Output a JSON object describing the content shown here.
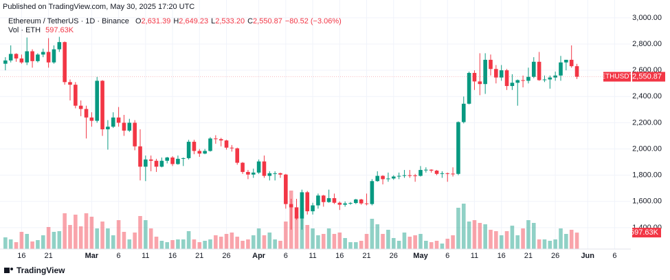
{
  "chart_data": {
    "type": "candlestick",
    "published": "Published on TradingView.com, May 30, 2025 17:20 UTC",
    "title": "Ethereum / TetherUS · 1D · Binance",
    "ohlc_legend": [
      {
        "label": "O",
        "value": "2,631.39"
      },
      {
        "label": "H",
        "value": "2,649.23"
      },
      {
        "label": "L",
        "value": "2,533.20"
      },
      {
        "label": "C",
        "value": "2,550.87"
      }
    ],
    "change": "−80.52 (−3.06%)",
    "symbol": "ETHUSDT",
    "last_price_label": "2,550.87",
    "footer": "TradingView",
    "up_color": "#089981",
    "down_color": "#f23645",
    "grid": true,
    "x": [
      "2025-02-13",
      "2025-02-14",
      "2025-02-15",
      "2025-02-16",
      "2025-02-17",
      "2025-02-18",
      "2025-02-19",
      "2025-02-20",
      "2025-02-21",
      "2025-02-22",
      "2025-02-23",
      "2025-02-24",
      "2025-02-25",
      "2025-02-26",
      "2025-02-27",
      "2025-02-28",
      "2025-03-01",
      "2025-03-02",
      "2025-03-03",
      "2025-03-04",
      "2025-03-05",
      "2025-03-06",
      "2025-03-07",
      "2025-03-08",
      "2025-03-09",
      "2025-03-10",
      "2025-03-11",
      "2025-03-12",
      "2025-03-13",
      "2025-03-14",
      "2025-03-15",
      "2025-03-16",
      "2025-03-17",
      "2025-03-18",
      "2025-03-19",
      "2025-03-20",
      "2025-03-21",
      "2025-03-22",
      "2025-03-23",
      "2025-03-24",
      "2025-03-25",
      "2025-03-26",
      "2025-03-27",
      "2025-03-28",
      "2025-03-29",
      "2025-03-30",
      "2025-03-31",
      "2025-04-01",
      "2025-04-02",
      "2025-04-03",
      "2025-04-04",
      "2025-04-05",
      "2025-04-06",
      "2025-04-07",
      "2025-04-08",
      "2025-04-09",
      "2025-04-10",
      "2025-04-11",
      "2025-04-12",
      "2025-04-13",
      "2025-04-14",
      "2025-04-15",
      "2025-04-16",
      "2025-04-17",
      "2025-04-18",
      "2025-04-19",
      "2025-04-20",
      "2025-04-21",
      "2025-04-22",
      "2025-04-23",
      "2025-04-24",
      "2025-04-25",
      "2025-04-26",
      "2025-04-27",
      "2025-04-28",
      "2025-04-29",
      "2025-04-30",
      "2025-05-01",
      "2025-05-02",
      "2025-05-03",
      "2025-05-04",
      "2025-05-05",
      "2025-05-06",
      "2025-05-07",
      "2025-05-08",
      "2025-05-09",
      "2025-05-10",
      "2025-05-11",
      "2025-05-12",
      "2025-05-13",
      "2025-05-14",
      "2025-05-15",
      "2025-05-16",
      "2025-05-17",
      "2025-05-18",
      "2025-05-19",
      "2025-05-20",
      "2025-05-21",
      "2025-05-22",
      "2025-05-23",
      "2025-05-24",
      "2025-05-25",
      "2025-05-26",
      "2025-05-27",
      "2025-05-28",
      "2025-05-29",
      "2025-05-30"
    ],
    "open": [
      2650,
      2675,
      2725,
      2690,
      2660,
      2745,
      2670,
      2720,
      2740,
      2660,
      2760,
      2815,
      2510,
      2490,
      2330,
      2305,
      2240,
      2215,
      2520,
      2150,
      2170,
      2240,
      2200,
      2140,
      2200,
      2020,
      1865,
      1920,
      1910,
      1865,
      1910,
      1935,
      1885,
      1925,
      1930,
      2055,
      1985,
      1965,
      1985,
      2080,
      2075,
      2065,
      2010,
      2005,
      1895,
      1825,
      1805,
      1820,
      1905,
      1795,
      1815,
      1815,
      1805,
      1580,
      1555,
      1470,
      1670,
      1525,
      1570,
      1645,
      1595,
      1625,
      1590,
      1575,
      1585,
      1588,
      1615,
      1585,
      1580,
      1755,
      1795,
      1770,
      1775,
      1790,
      1795,
      1800,
      1798,
      1795,
      1840,
      1842,
      1835,
      1810,
      1815,
      1812,
      1810,
      2205,
      2345,
      2580,
      2515,
      2495,
      2680,
      2610,
      2545,
      2600,
      2480,
      2505,
      2525,
      2520,
      2550,
      2665,
      2525,
      2530,
      2545,
      2560,
      2660,
      2680,
      2631.39
    ],
    "high": [
      2700,
      2790,
      2730,
      2720,
      2850,
      2760,
      2730,
      2765,
      2845,
      2790,
      2855,
      2820,
      2530,
      2510,
      2370,
      2330,
      2280,
      2550,
      2525,
      2220,
      2280,
      2320,
      2260,
      2230,
      2220,
      2150,
      1950,
      1950,
      1925,
      1935,
      1940,
      1945,
      1950,
      1935,
      2070,
      2070,
      2000,
      2000,
      2090,
      2105,
      2085,
      2070,
      2030,
      2010,
      1900,
      1840,
      1850,
      1920,
      1950,
      1830,
      1830,
      1820,
      1810,
      1620,
      1620,
      1690,
      1680,
      1590,
      1660,
      1650,
      1690,
      1660,
      1600,
      1600,
      1595,
      1620,
      1620,
      1660,
      1770,
      1830,
      1800,
      1820,
      1800,
      1820,
      1840,
      1840,
      1810,
      1870,
      1860,
      1845,
      1840,
      1830,
      1820,
      1860,
      2210,
      2400,
      2590,
      2600,
      2730,
      2730,
      2720,
      2640,
      2640,
      2610,
      2570,
      2530,
      2560,
      2620,
      2700,
      2740,
      2560,
      2560,
      2590,
      2710,
      2680,
      2790,
      2649.23
    ],
    "low": [
      2600,
      2660,
      2665,
      2650,
      2640,
      2620,
      2660,
      2700,
      2620,
      2650,
      2740,
      2490,
      2370,
      2310,
      2250,
      2080,
      2170,
      2200,
      2100,
      1995,
      2160,
      2170,
      2100,
      2130,
      1990,
      1760,
      1755,
      1830,
      1825,
      1860,
      1890,
      1870,
      1880,
      1870,
      1920,
      1960,
      1940,
      1960,
      1980,
      2040,
      2020,
      1995,
      1980,
      1880,
      1810,
      1770,
      1780,
      1810,
      1780,
      1760,
      1760,
      1780,
      1545,
      1385,
      1460,
      1385,
      1500,
      1500,
      1545,
      1560,
      1590,
      1580,
      1535,
      1560,
      1575,
      1580,
      1575,
      1570,
      1570,
      1750,
      1730,
      1750,
      1765,
      1770,
      1780,
      1780,
      1750,
      1790,
      1820,
      1820,
      1800,
      1780,
      1750,
      1790,
      1800,
      2195,
      2340,
      2450,
      2410,
      2420,
      2560,
      2500,
      2520,
      2450,
      2450,
      2330,
      2470,
      2500,
      2540,
      2520,
      2510,
      2460,
      2520,
      2520,
      2600,
      2620,
      2533.2
    ],
    "close": [
      2675,
      2725,
      2690,
      2660,
      2745,
      2670,
      2720,
      2740,
      2660,
      2760,
      2815,
      2510,
      2490,
      2330,
      2305,
      2240,
      2215,
      2520,
      2150,
      2170,
      2240,
      2200,
      2140,
      2200,
      2020,
      1865,
      1920,
      1910,
      1865,
      1910,
      1935,
      1885,
      1925,
      1930,
      2055,
      1985,
      1965,
      1985,
      2080,
      2075,
      2065,
      2010,
      2005,
      1895,
      1825,
      1805,
      1820,
      1905,
      1795,
      1815,
      1815,
      1805,
      1580,
      1555,
      1470,
      1670,
      1525,
      1570,
      1645,
      1595,
      1625,
      1590,
      1575,
      1585,
      1588,
      1615,
      1585,
      1580,
      1755,
      1795,
      1770,
      1775,
      1790,
      1795,
      1800,
      1798,
      1795,
      1840,
      1842,
      1835,
      1810,
      1815,
      1812,
      1810,
      2205,
      2345,
      2580,
      2515,
      2495,
      2680,
      2610,
      2545,
      2600,
      2480,
      2505,
      2525,
      2520,
      2550,
      2665,
      2525,
      2530,
      2545,
      2560,
      2660,
      2680,
      2631.39,
      2550.87
    ],
    "volume": {
      "name": "Vol · ETH",
      "last_label": "597.63K",
      "values": [
        425000,
        350000,
        250000,
        625000,
        550000,
        275000,
        325000,
        500000,
        800000,
        625000,
        650000,
        1300000,
        875000,
        1250000,
        825000,
        1300000,
        1175000,
        750000,
        1000000,
        750000,
        500000,
        1050000,
        625000,
        350000,
        600000,
        1200000,
        1050000,
        750000,
        450000,
        300000,
        250000,
        325000,
        350000,
        350000,
        650000,
        350000,
        250000,
        300000,
        350000,
        500000,
        450000,
        550000,
        600000,
        450000,
        300000,
        350000,
        500000,
        750000,
        500000,
        600000,
        350000,
        300000,
        1000000,
        2125000,
        1200000,
        1500000,
        875000,
        750000,
        500000,
        550000,
        750000,
        550000,
        600000,
        400000,
        250000,
        250000,
        300000,
        550000,
        1100000,
        900000,
        550000,
        700000,
        400000,
        300000,
        600000,
        450000,
        500000,
        550000,
        300000,
        250000,
        300000,
        200000,
        375000,
        500000,
        1500000,
        1650000,
        1000000,
        1050000,
        950000,
        900000,
        700000,
        650000,
        500000,
        650000,
        850000,
        500000,
        750000,
        1050000,
        950000,
        350000,
        350000,
        300000,
        350000,
        750000,
        550000,
        700000,
        597630
      ]
    },
    "xlim": [
      "2025-02-12",
      "2025-06-09"
    ],
    "xticks": [
      {
        "value": "2025-02-16",
        "label": "16"
      },
      {
        "value": "2025-02-21",
        "label": "21"
      },
      {
        "value": "2025-03-01",
        "label": "Mar"
      },
      {
        "value": "2025-03-06",
        "label": "6"
      },
      {
        "value": "2025-03-11",
        "label": "11"
      },
      {
        "value": "2025-03-16",
        "label": "16"
      },
      {
        "value": "2025-03-21",
        "label": "21"
      },
      {
        "value": "2025-03-26",
        "label": "26"
      },
      {
        "value": "2025-04-01",
        "label": "Apr"
      },
      {
        "value": "2025-04-06",
        "label": "6"
      },
      {
        "value": "2025-04-11",
        "label": "11"
      },
      {
        "value": "2025-04-16",
        "label": "16"
      },
      {
        "value": "2025-04-21",
        "label": "21"
      },
      {
        "value": "2025-04-26",
        "label": "26"
      },
      {
        "value": "2025-05-01",
        "label": "May"
      },
      {
        "value": "2025-05-06",
        "label": "6"
      },
      {
        "value": "2025-05-11",
        "label": "11"
      },
      {
        "value": "2025-05-16",
        "label": "16"
      },
      {
        "value": "2025-05-21",
        "label": "21"
      },
      {
        "value": "2025-05-26",
        "label": "26"
      },
      {
        "value": "2025-06-01",
        "label": "Jun"
      },
      {
        "value": "2025-06-06",
        "label": "6"
      }
    ],
    "ylim": [
      1237,
      3136
    ],
    "yticks": [
      {
        "value": 1400,
        "label": "1,400.00"
      },
      {
        "value": 1600,
        "label": "1,600.00"
      },
      {
        "value": 1800,
        "label": "1,800.00"
      },
      {
        "value": 2000,
        "label": "2,000.00"
      },
      {
        "value": 2200,
        "label": "2,200.00"
      },
      {
        "value": 2400,
        "label": "2,400.00"
      },
      {
        "value": 2600,
        "label": "2,600.00"
      },
      {
        "value": 2800,
        "label": "2,800.00"
      },
      {
        "value": 3000,
        "label": "3,000.00"
      }
    ]
  }
}
